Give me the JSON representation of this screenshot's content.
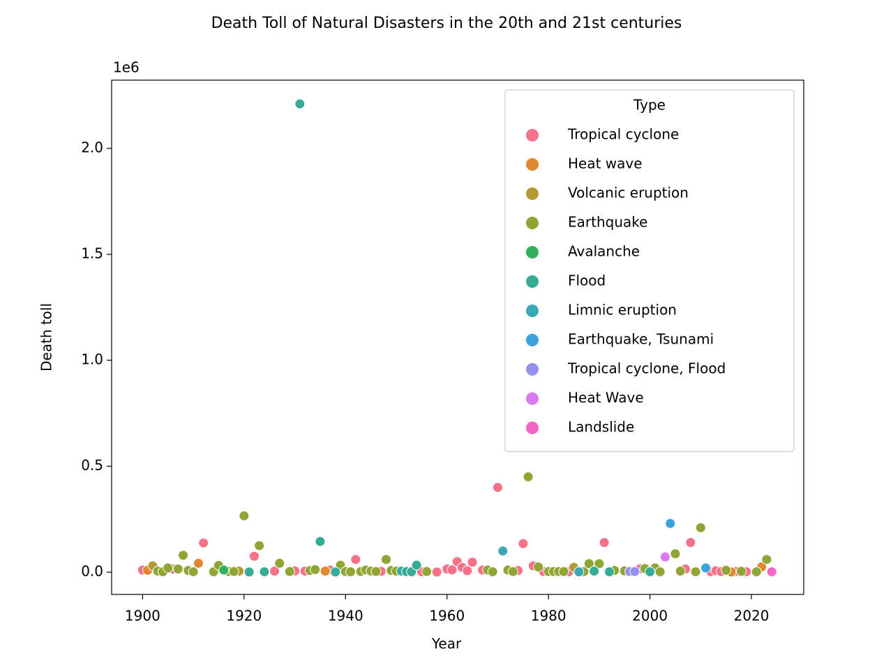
{
  "chart_data": {
    "type": "scatter",
    "title": "Death Toll of Natural Disasters in the 20th and 21st centuries",
    "x_label": "Year",
    "y_label": "Death toll",
    "y_offset_label": "1e6",
    "legend_title": "Type",
    "legend": "upper right",
    "xlim": [
      1893.9,
      2030.3
    ],
    "ylim": [
      -105000,
      2322000
    ],
    "xticks": [
      1900,
      1920,
      1940,
      1960,
      1980,
      2000,
      2020
    ],
    "yticks": [
      {
        "value": 0,
        "label": "0.0"
      },
      {
        "value": 500000,
        "label": "0.5"
      },
      {
        "value": 1000000,
        "label": "1.0"
      },
      {
        "value": 1500000,
        "label": "1.5"
      },
      {
        "value": 2000000,
        "label": "2.0"
      }
    ],
    "series": [
      {
        "name": "Tropical cyclone",
        "color": "#f77189",
        "x": [
          1900,
          1906,
          1912,
          1922,
          1926,
          1930,
          1932,
          1937,
          1942,
          1947,
          1955,
          1958,
          1960,
          1961,
          1962,
          1963,
          1964,
          1965,
          1967,
          1970,
          1974,
          1975,
          1977,
          1979,
          1984,
          1991,
          1998,
          2007,
          2008,
          2012,
          2013,
          2014,
          2017,
          2019
        ],
        "values": [
          10000,
          15000,
          138000,
          75000,
          5000,
          6000,
          5000,
          10000,
          60000,
          4000,
          2000,
          1000,
          15000,
          11000,
          50000,
          22000,
          7000,
          47000,
          10000,
          400000,
          8000,
          135000,
          30000,
          3000,
          2000,
          140000,
          15000,
          15000,
          140000,
          2000,
          7000,
          3000,
          3000,
          2000
        ]
      },
      {
        "name": "Heat wave",
        "color": "#e0872f",
        "x": [
          1901,
          1911,
          1936,
          2016,
          2022
        ],
        "values": [
          9000,
          42000,
          5000,
          1000,
          25000
        ]
      },
      {
        "name": "Volcanic eruption",
        "color": "#b59a32",
        "x": [
          1902,
          1919,
          1985
        ],
        "values": [
          30000,
          5000,
          23000
        ]
      },
      {
        "name": "Earthquake",
        "color": "#8fa534",
        "x": [
          1903,
          1904,
          1905,
          1907,
          1908,
          1909,
          1910,
          1914,
          1915,
          1917,
          1918,
          1920,
          1923,
          1927,
          1929,
          1933,
          1934,
          1939,
          1940,
          1941,
          1943,
          1944,
          1945,
          1946,
          1948,
          1949,
          1950,
          1956,
          1968,
          1969,
          1972,
          1973,
          1976,
          1978,
          1980,
          1981,
          1982,
          1983,
          1987,
          1988,
          1990,
          1993,
          1995,
          1999,
          2001,
          2002,
          2005,
          2006,
          2009,
          2010,
          2015,
          2018,
          2021,
          2023
        ],
        "values": [
          5000,
          2000,
          20000,
          15000,
          80000,
          8000,
          2000,
          2000,
          32000,
          3000,
          3000,
          266000,
          125000,
          42000,
          3000,
          8000,
          12000,
          33000,
          3000,
          2000,
          3000,
          10000,
          5000,
          3000,
          60000,
          8000,
          5000,
          3000,
          10000,
          2000,
          10000,
          3000,
          450000,
          25000,
          3000,
          3000,
          3000,
          3000,
          3000,
          40000,
          40000,
          8000,
          6000,
          17000,
          20000,
          2000,
          87000,
          5000,
          2000,
          210000,
          9000,
          4000,
          2000,
          60000
        ]
      },
      {
        "name": "Avalanche",
        "color": "#33b05c",
        "x": [
          1916
        ],
        "values": [
          10000
        ]
      },
      {
        "name": "Flood",
        "color": "#35ac93",
        "x": [
          1921,
          1924,
          1931,
          1935,
          1938,
          1951,
          1952,
          1953,
          1954,
          1989,
          1992,
          2000
        ],
        "values": [
          1000,
          2000,
          2210000,
          145000,
          1000,
          5000,
          3000,
          2000,
          33000,
          5000,
          2000,
          2000
        ]
      },
      {
        "name": "Limnic eruption",
        "color": "#38a9b5",
        "x": [
          1971,
          1986
        ],
        "values": [
          100000,
          1746
        ]
      },
      {
        "name": "Earthquake, Tsunami",
        "color": "#3ba3dc",
        "x": [
          2004,
          2011
        ],
        "values": [
          230000,
          20000
        ]
      },
      {
        "name": "Tropical cyclone, Flood",
        "color": "#9592ee",
        "x": [
          1996,
          1997
        ],
        "values": [
          3000,
          3000
        ]
      },
      {
        "name": "Heat Wave",
        "color": "#d97af0",
        "x": [
          2003
        ],
        "values": [
          72000
        ]
      },
      {
        "name": "Landslide",
        "color": "#f665c6",
        "x": [
          2024
        ],
        "values": [
          2000
        ]
      }
    ]
  }
}
